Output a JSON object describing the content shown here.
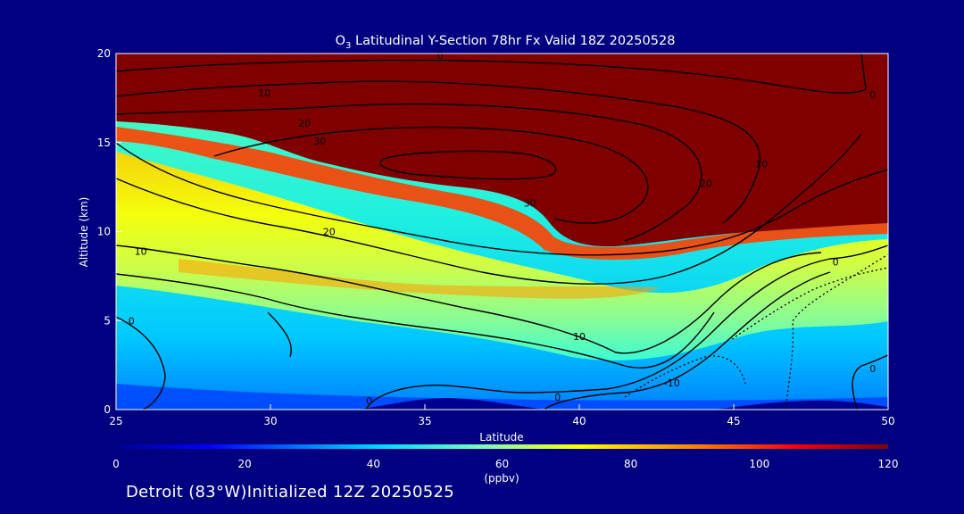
{
  "chart_data": {
    "type": "heatmap",
    "title_species_main": "O",
    "title_species_sub": "3",
    "title_rest": " Latitudinal Y-Section 78hr  Fx Valid 18Z 20250528",
    "xlabel": "Latitude",
    "ylabel": "Altitude (km)",
    "xlim": [
      25,
      50
    ],
    "ylim": [
      0,
      20
    ],
    "x_ticks": [
      25,
      30,
      35,
      40,
      45,
      50
    ],
    "y_ticks": [
      0,
      5,
      10,
      15,
      20
    ],
    "colorbar": {
      "label": "(ppbv)",
      "min": 0,
      "max": 120,
      "ticks": [
        0,
        20,
        40,
        60,
        80,
        100,
        120
      ]
    },
    "ozone_field": {
      "description_units": "ppbv",
      "tropopause_height_km": [
        [
          25,
          16.0
        ],
        [
          27,
          15.3
        ],
        [
          29,
          14.8
        ],
        [
          31,
          14.4
        ],
        [
          33,
          13.5
        ],
        [
          35,
          13.0
        ],
        [
          37,
          12.3
        ],
        [
          38,
          11.6
        ],
        [
          39,
          10.3
        ],
        [
          40,
          9.3
        ],
        [
          42,
          9.0
        ],
        [
          44,
          9.3
        ],
        [
          46,
          10.3
        ],
        [
          48,
          10.6
        ],
        [
          50,
          10.6
        ]
      ],
      "surface_blue_km": [
        [
          25,
          1.2
        ],
        [
          30,
          0.9
        ],
        [
          35,
          0.9
        ],
        [
          40,
          0.7
        ],
        [
          45,
          0.9
        ],
        [
          50,
          1.0
        ]
      ]
    },
    "contour_labels": [
      {
        "text": "0",
        "x": 35.5,
        "y": 19.9
      },
      {
        "text": "10",
        "x": 29.8,
        "y": 17.8
      },
      {
        "text": "20",
        "x": 31.1,
        "y": 16.1
      },
      {
        "text": "30",
        "x": 31.6,
        "y": 15.1
      },
      {
        "text": "30",
        "x": 38.4,
        "y": 11.6
      },
      {
        "text": "20",
        "x": 44.1,
        "y": 12.7
      },
      {
        "text": "10",
        "x": 45.9,
        "y": 13.8
      },
      {
        "text": "0",
        "x": 49.5,
        "y": 17.7
      },
      {
        "text": "20",
        "x": 31.9,
        "y": 10.0
      },
      {
        "text": "10",
        "x": 25.8,
        "y": 8.9
      },
      {
        "text": "10",
        "x": 40.0,
        "y": 4.1
      },
      {
        "text": "0",
        "x": 25.5,
        "y": 5.0
      },
      {
        "text": "0",
        "x": 48.3,
        "y": 8.3
      },
      {
        "text": "0",
        "x": 49.5,
        "y": 2.3
      },
      {
        "text": "0",
        "x": 33.2,
        "y": 0.5
      },
      {
        "text": "0",
        "x": 39.3,
        "y": 0.7
      },
      {
        "text": "-10",
        "x": 43.0,
        "y": 1.5
      }
    ]
  },
  "footer": {
    "text": "Detroit (83°W)Initialized 12Z 20250525"
  },
  "colors": {
    "background": "#000080",
    "axes": "#ffffff",
    "text": "#ffffff",
    "contour": "#000000",
    "stratosphere": "#800000"
  }
}
